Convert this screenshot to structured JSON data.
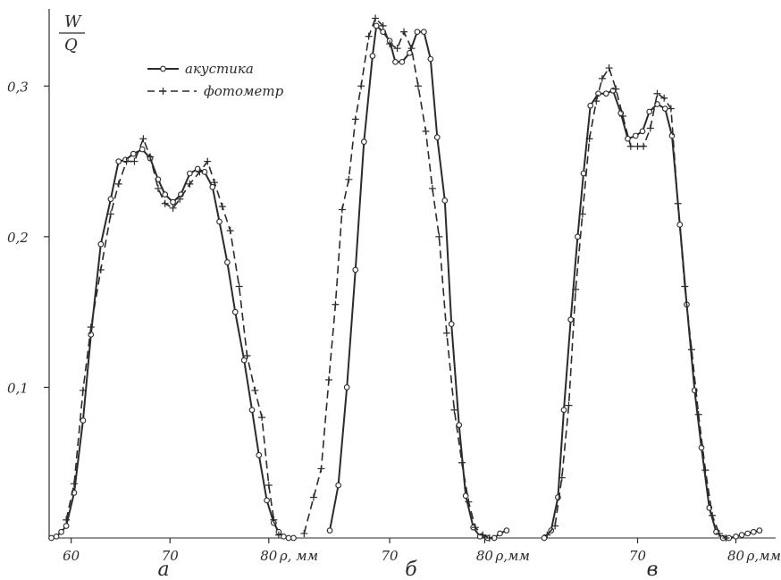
{
  "chart_data": {
    "type": "line",
    "y_axis": {
      "label_top": "W",
      "label_bottom": "Q",
      "ticks": [
        0.1,
        0.2,
        0.3
      ],
      "tick_labels": [
        "0,1",
        "0,2",
        "0,3"
      ],
      "ylim": [
        0,
        0.35
      ]
    },
    "legend": {
      "position": "top-left",
      "entries": [
        {
          "label": "акустика",
          "style": "solid line with circle markers"
        },
        {
          "label": "фотометр",
          "style": "dashed line with plus markers"
        }
      ]
    },
    "colors": {
      "ink": "#2b2b2b",
      "background": "#ffffff"
    },
    "panels": [
      {
        "id": "a",
        "label": "а",
        "xlabel": "ρ, мм",
        "xlim": [
          57.5,
          83
        ],
        "xticks": [
          60,
          70,
          80
        ],
        "xtick_labels": [
          "60",
          "70",
          "80"
        ],
        "series": [
          {
            "name": "акустика",
            "x": [
              58.0,
              58.5,
              59.0,
              59.5,
              60.3,
              61.2,
              62.0,
              63.0,
              64.0,
              64.8,
              65.5,
              66.3,
              67.2,
              68.0,
              68.8,
              69.5,
              70.3,
              71.1,
              72.0,
              72.8,
              73.5,
              74.3,
              75.0,
              75.8,
              76.6,
              77.5,
              78.3,
              79.0,
              79.8,
              80.5,
              81.0,
              81.5,
              82.0,
              82.5
            ],
            "y": [
              0.0,
              0.001,
              0.004,
              0.008,
              0.03,
              0.078,
              0.135,
              0.195,
              0.225,
              0.25,
              0.251,
              0.255,
              0.258,
              0.252,
              0.238,
              0.228,
              0.223,
              0.228,
              0.242,
              0.245,
              0.243,
              0.233,
              0.21,
              0.183,
              0.15,
              0.118,
              0.085,
              0.055,
              0.025,
              0.01,
              0.004,
              0.001,
              0.0,
              0.0
            ]
          },
          {
            "name": "фотометр",
            "x": [
              59.5,
              60.3,
              61.2,
              62.0,
              63.0,
              64.0,
              64.8,
              65.6,
              66.4,
              67.3,
              68.0,
              68.8,
              69.5,
              70.3,
              71.0,
              72.0,
              73.0,
              73.8,
              74.5,
              75.3,
              76.1,
              77.0,
              77.8,
              78.6,
              79.3,
              80.0,
              80.5,
              81.0
            ],
            "y": [
              0.012,
              0.036,
              0.098,
              0.14,
              0.178,
              0.215,
              0.235,
              0.25,
              0.25,
              0.265,
              0.253,
              0.232,
              0.222,
              0.219,
              0.225,
              0.235,
              0.243,
              0.25,
              0.236,
              0.22,
              0.204,
              0.167,
              0.121,
              0.098,
              0.08,
              0.035,
              0.012,
              0.002
            ]
          }
        ]
      },
      {
        "id": "b",
        "label": "б",
        "xlabel": "ρ,мм",
        "xlim": [
          60.5,
          84
        ],
        "xticks": [
          70,
          80
        ],
        "xtick_labels": [
          "70",
          "80"
        ],
        "series": [
          {
            "name": "акустика",
            "x": [
              63.7,
              64.6,
              65.5,
              66.4,
              67.3,
              68.2,
              68.6,
              69.3,
              70.0,
              70.6,
              71.3,
              72.1,
              72.9,
              73.6,
              74.3,
              75.0,
              75.8,
              76.5,
              77.3,
              78.0,
              78.8,
              79.5,
              80.3,
              81.0,
              81.6,
              82.3
            ],
            "y": [
              0.005,
              0.035,
              0.1,
              0.178,
              0.263,
              0.32,
              0.34,
              0.336,
              0.33,
              0.316,
              0.316,
              0.322,
              0.336,
              0.336,
              0.318,
              0.266,
              0.224,
              0.142,
              0.075,
              0.028,
              0.007,
              0.001,
              0.0,
              0.0,
              0.003,
              0.005
            ]
          },
          {
            "name": "фотометр",
            "x": [
              61.0,
              62.0,
              62.8,
              63.6,
              64.3,
              65.0,
              65.7,
              66.4,
              67.0,
              67.8,
              68.5,
              69.3,
              70.0,
              70.8,
              71.5,
              72.3,
              73.0,
              73.8,
              74.5,
              75.2,
              76.0,
              76.8,
              77.6,
              78.3,
              79.0,
              79.8,
              80.5
            ],
            "y": [
              0.003,
              0.027,
              0.046,
              0.105,
              0.155,
              0.218,
              0.238,
              0.278,
              0.3,
              0.333,
              0.345,
              0.34,
              0.328,
              0.325,
              0.336,
              0.325,
              0.3,
              0.27,
              0.232,
              0.2,
              0.136,
              0.085,
              0.05,
              0.024,
              0.007,
              0.002,
              0.0
            ]
          }
        ]
      },
      {
        "id": "v",
        "label": "в",
        "xlabel": "ρ,мм",
        "xlim": [
          59.5,
          83.5
        ],
        "xticks": [
          70,
          80
        ],
        "xtick_labels": [
          "70",
          "80"
        ],
        "series": [
          {
            "name": "акустика",
            "x": [
              60.5,
              61.2,
              61.9,
              62.5,
              63.2,
              63.9,
              64.5,
              65.2,
              66.0,
              66.8,
              67.5,
              68.3,
              69.0,
              69.8,
              70.5,
              71.2,
              72.0,
              72.8,
              73.5,
              74.3,
              75.0,
              75.8,
              76.5,
              77.3,
              78.0,
              78.7,
              79.3,
              80.0,
              80.6,
              81.2,
              81.8,
              82.4
            ],
            "y": [
              0.0,
              0.005,
              0.027,
              0.085,
              0.145,
              0.2,
              0.242,
              0.287,
              0.295,
              0.295,
              0.297,
              0.282,
              0.265,
              0.267,
              0.27,
              0.283,
              0.288,
              0.285,
              0.267,
              0.208,
              0.155,
              0.098,
              0.06,
              0.02,
              0.004,
              0.0,
              0.0,
              0.001,
              0.002,
              0.003,
              0.004,
              0.005
            ]
          },
          {
            "name": "фотометр",
            "x": [
              60.8,
              61.6,
              62.3,
              63.0,
              63.7,
              64.4,
              65.1,
              65.8,
              66.4,
              67.1,
              67.8,
              68.5,
              69.3,
              70.0,
              70.6,
              71.3,
              72.0,
              72.7,
              73.4,
              74.1,
              74.8,
              75.5,
              76.2,
              76.9,
              77.6,
              78.3,
              79.0
            ],
            "y": [
              0.002,
              0.008,
              0.04,
              0.088,
              0.165,
              0.215,
              0.265,
              0.29,
              0.305,
              0.312,
              0.298,
              0.28,
              0.26,
              0.26,
              0.26,
              0.272,
              0.295,
              0.292,
              0.285,
              0.222,
              0.167,
              0.125,
              0.082,
              0.045,
              0.015,
              0.003,
              0.0
            ]
          }
        ]
      }
    ]
  }
}
